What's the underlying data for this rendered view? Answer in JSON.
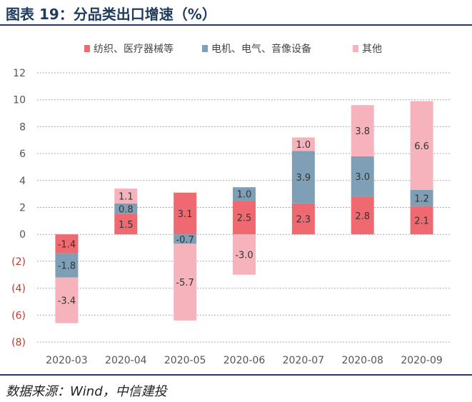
{
  "header": {
    "title": "图表 19：分品类出口增速（%）"
  },
  "footer": {
    "source": "数据来源：Wind，中信建投"
  },
  "colors": {
    "series": [
      "#ee6a70",
      "#7f9fb7",
      "#f7b3bc"
    ],
    "gridline": "#a9a9a9",
    "negative_tick": "#c0392b",
    "positive_tick": "#555555",
    "label_text": "#333333",
    "rule": "#1f3b5e"
  },
  "chart_data": {
    "type": "bar",
    "stacked": true,
    "categories": [
      "2020-03",
      "2020-04",
      "2020-05",
      "2020-06",
      "2020-07",
      "2020-08",
      "2020-09"
    ],
    "series": [
      {
        "name": "纺织、医疗器械等",
        "values": [
          -1.4,
          1.5,
          3.1,
          2.5,
          2.3,
          2.8,
          2.1
        ]
      },
      {
        "name": "电机、电气、音像设备",
        "values": [
          -1.8,
          0.8,
          -0.7,
          1.0,
          3.9,
          3.0,
          1.2
        ]
      },
      {
        "name": "其他",
        "values": [
          -3.4,
          1.1,
          -5.7,
          -3.0,
          1.0,
          3.8,
          6.6
        ]
      }
    ],
    "labels": [
      [
        "-1.4",
        "1.5",
        "3.1",
        "2.5",
        "2.3",
        "2.8",
        "2.1"
      ],
      [
        "-1.8",
        "0.8",
        "-0.7",
        "1.0",
        "3.9",
        "3.0",
        "1.2"
      ],
      [
        "-3.4",
        "1.1",
        "-5.7",
        "-3.0",
        "1.0",
        "3.8",
        "6.6"
      ]
    ],
    "ylim": [
      -8,
      12
    ],
    "yticks": [
      12,
      10,
      8,
      6,
      4,
      2,
      0,
      -2,
      -4,
      -6,
      -8
    ],
    "ytick_labels": [
      "12",
      "10",
      "8",
      "6",
      "4",
      "2",
      "0",
      "(2)",
      "(4)",
      "(6)",
      "(8)"
    ],
    "grid": true,
    "legend_position": "top"
  }
}
